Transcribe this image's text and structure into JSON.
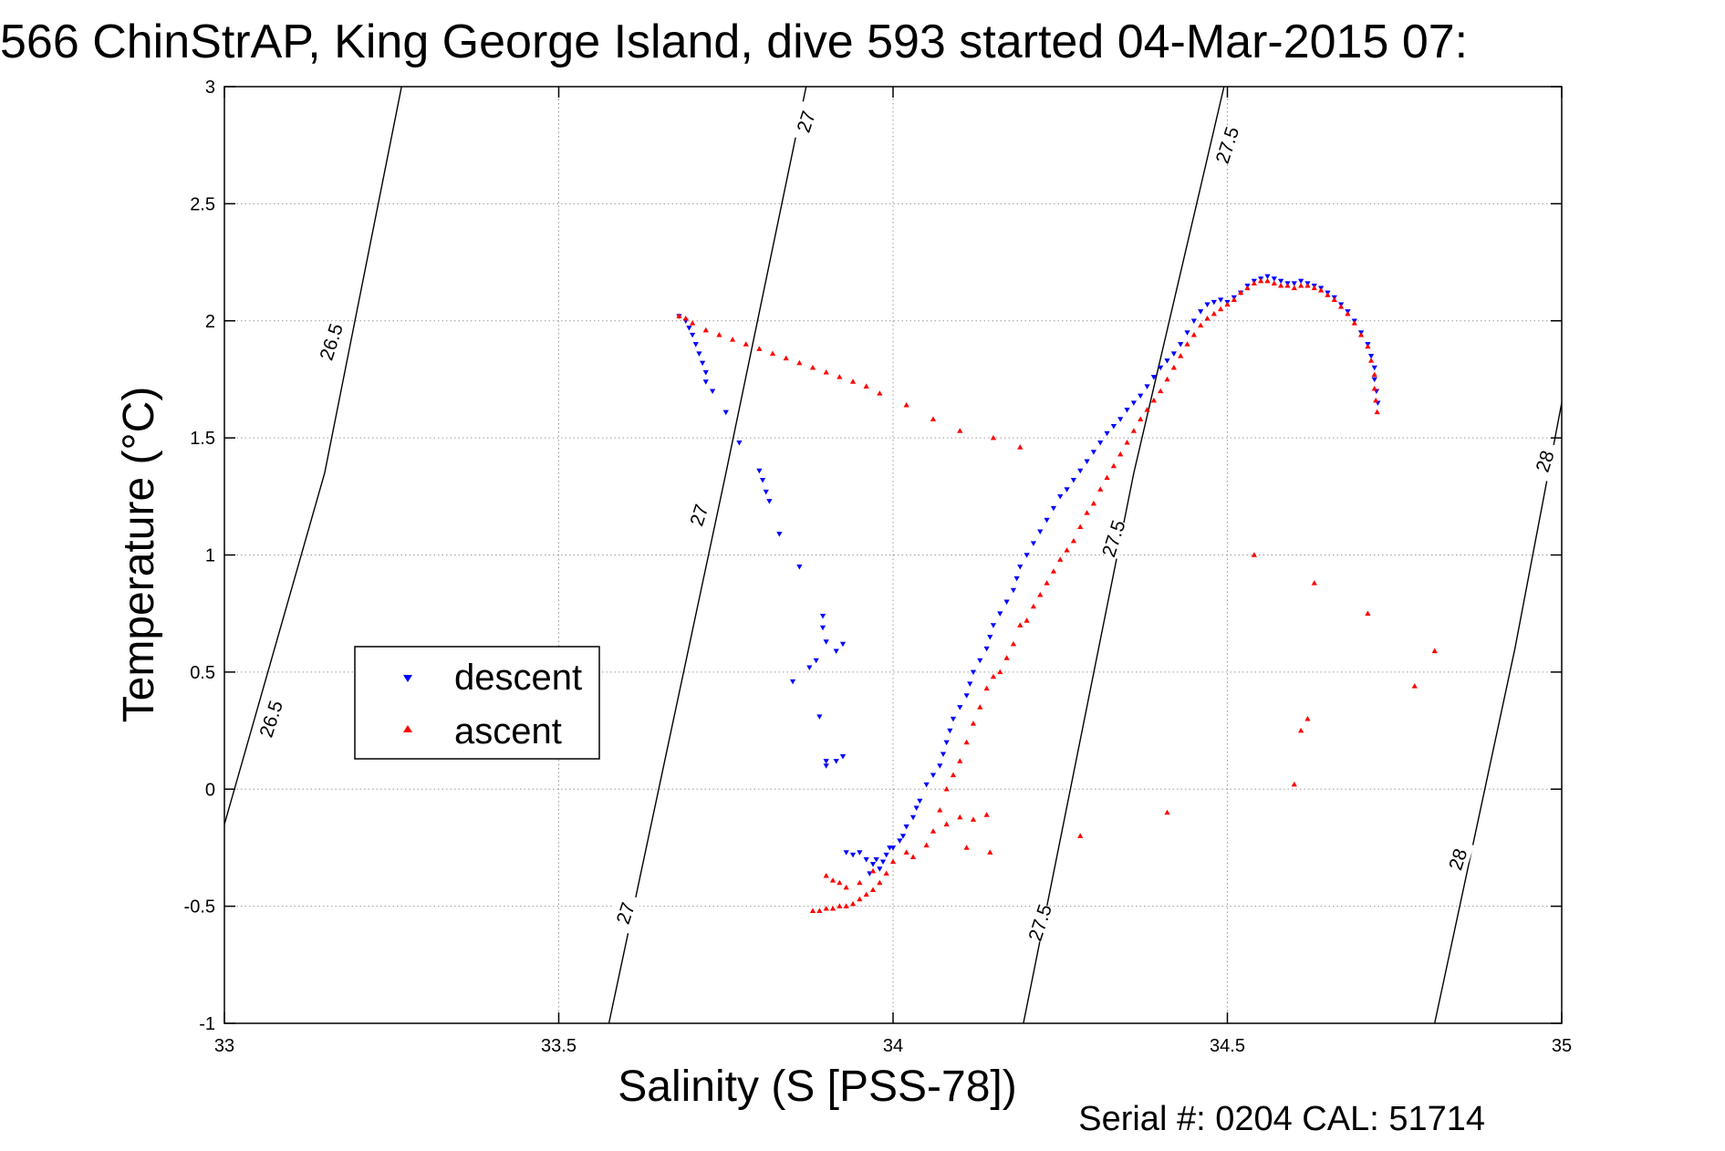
{
  "page": {
    "title": "566 ChinStrAP, King George Island, dive 593 started 04-Mar-2015 07:",
    "footer": "Serial #: 0204  CAL: 51714"
  },
  "chart_data": {
    "type": "scatter",
    "title": "566 ChinStrAP, King George Island, dive 593 started 04-Mar-2015 07:",
    "xlabel": "Salinity (S [PSS-78])",
    "ylabel": "Temperature (°C)",
    "xlim": [
      33,
      35
    ],
    "ylim": [
      -1,
      3
    ],
    "x_ticks": [
      33,
      33.5,
      34,
      34.5,
      35
    ],
    "x_tick_labels": [
      "33",
      "33.5",
      "34",
      "34.5",
      "35"
    ],
    "y_ticks": [
      -1,
      -0.5,
      0,
      0.5,
      1,
      1.5,
      2,
      2.5,
      3
    ],
    "y_tick_labels": [
      "-1",
      "-0.5",
      "0",
      "0.5",
      "1",
      "1.5",
      "2",
      "2.5",
      "3"
    ],
    "grid": true,
    "legend": {
      "placement": "middle-left",
      "entries": [
        {
          "label": "descent",
          "color": "#0000ff",
          "marker": "triangle-down"
        },
        {
          "label": "ascent",
          "color": "#ff0000",
          "marker": "triangle-up"
        }
      ]
    },
    "contours": [
      {
        "level": "26.5",
        "path": [
          [
            33.0,
            -0.15
          ],
          [
            33.15,
            1.35
          ],
          [
            33.265,
            3.0
          ]
        ],
        "labels": [
          {
            "x": 33.07,
            "y": 0.3,
            "angle": -72
          },
          {
            "x": 33.16,
            "y": 1.91,
            "angle": -72
          }
        ]
      },
      {
        "level": "27",
        "path": [
          [
            33.575,
            -1.0
          ],
          [
            33.75,
            1.35
          ],
          [
            33.87,
            3.0
          ]
        ],
        "labels": [
          {
            "x": 33.6,
            "y": -0.53,
            "angle": -72
          },
          {
            "x": 33.71,
            "y": 1.17,
            "angle": -72
          },
          {
            "x": 33.87,
            "y": 2.85,
            "angle": -72
          }
        ]
      },
      {
        "level": "27.5",
        "path": [
          [
            34.195,
            -1.0
          ],
          [
            34.36,
            1.35
          ],
          [
            34.495,
            3.0
          ]
        ],
        "labels": [
          {
            "x": 34.22,
            "y": -0.57,
            "angle": -72
          },
          {
            "x": 34.33,
            "y": 1.07,
            "angle": -72
          },
          {
            "x": 34.5,
            "y": 2.75,
            "angle": -72
          }
        ]
      },
      {
        "level": "28",
        "path": [
          [
            34.81,
            -1.0
          ],
          [
            34.93,
            0.6
          ],
          [
            35.0,
            1.65
          ]
        ],
        "labels": [
          {
            "x": 34.845,
            "y": -0.3,
            "angle": -72
          },
          {
            "x": 34.975,
            "y": 1.4,
            "angle": -72
          }
        ]
      }
    ],
    "series": [
      {
        "name": "descent",
        "color": "#0000ff",
        "marker": "triangle-down",
        "points": [
          [
            33.68,
            2.02
          ],
          [
            33.69,
            2.0
          ],
          [
            33.695,
            1.97
          ],
          [
            33.7,
            1.94
          ],
          [
            33.705,
            1.9
          ],
          [
            33.71,
            1.86
          ],
          [
            33.715,
            1.82
          ],
          [
            33.72,
            1.78
          ],
          [
            33.72,
            1.74
          ],
          [
            33.73,
            1.7
          ],
          [
            33.75,
            1.61
          ],
          [
            33.77,
            1.48
          ],
          [
            33.8,
            1.36
          ],
          [
            33.805,
            1.32
          ],
          [
            33.81,
            1.27
          ],
          [
            33.815,
            1.23
          ],
          [
            33.83,
            1.09
          ],
          [
            33.86,
            0.95
          ],
          [
            33.895,
            0.74
          ],
          [
            33.895,
            0.69
          ],
          [
            33.9,
            0.63
          ],
          [
            33.885,
            0.55
          ],
          [
            33.875,
            0.52
          ],
          [
            33.85,
            0.46
          ],
          [
            33.89,
            0.31
          ],
          [
            33.915,
            0.59
          ],
          [
            33.925,
            0.62
          ],
          [
            33.9,
            0.12
          ],
          [
            33.9,
            0.1
          ],
          [
            33.915,
            0.12
          ],
          [
            33.925,
            0.14
          ],
          [
            33.93,
            -0.27
          ],
          [
            33.94,
            -0.28
          ],
          [
            33.95,
            -0.27
          ],
          [
            33.96,
            -0.3
          ],
          [
            33.965,
            -0.36
          ],
          [
            33.97,
            -0.32
          ],
          [
            33.975,
            -0.3
          ],
          [
            33.98,
            -0.34
          ],
          [
            33.985,
            -0.31
          ],
          [
            33.99,
            -0.28
          ],
          [
            33.995,
            -0.25
          ],
          [
            34.0,
            -0.25
          ],
          [
            34.01,
            -0.22
          ],
          [
            34.015,
            -0.2
          ],
          [
            34.02,
            -0.16
          ],
          [
            34.03,
            -0.12
          ],
          [
            34.035,
            -0.08
          ],
          [
            34.04,
            -0.05
          ],
          [
            34.05,
            0.02
          ],
          [
            34.06,
            0.06
          ],
          [
            34.07,
            0.1
          ],
          [
            34.075,
            0.15
          ],
          [
            34.08,
            0.2
          ],
          [
            34.085,
            0.25
          ],
          [
            34.09,
            0.3
          ],
          [
            34.1,
            0.35
          ],
          [
            34.11,
            0.4
          ],
          [
            34.115,
            0.45
          ],
          [
            34.12,
            0.5
          ],
          [
            34.13,
            0.55
          ],
          [
            34.14,
            0.6
          ],
          [
            34.145,
            0.65
          ],
          [
            34.15,
            0.7
          ],
          [
            34.16,
            0.75
          ],
          [
            34.17,
            0.8
          ],
          [
            34.18,
            0.85
          ],
          [
            34.185,
            0.9
          ],
          [
            34.19,
            0.95
          ],
          [
            34.2,
            1.0
          ],
          [
            34.21,
            1.05
          ],
          [
            34.22,
            1.1
          ],
          [
            34.23,
            1.15
          ],
          [
            34.24,
            1.2
          ],
          [
            34.25,
            1.25
          ],
          [
            34.26,
            1.28
          ],
          [
            34.27,
            1.32
          ],
          [
            34.28,
            1.36
          ],
          [
            34.29,
            1.4
          ],
          [
            34.3,
            1.44
          ],
          [
            34.31,
            1.48
          ],
          [
            34.32,
            1.52
          ],
          [
            34.33,
            1.55
          ],
          [
            34.34,
            1.58
          ],
          [
            34.35,
            1.62
          ],
          [
            34.36,
            1.65
          ],
          [
            34.37,
            1.68
          ],
          [
            34.38,
            1.72
          ],
          [
            34.39,
            1.76
          ],
          [
            34.4,
            1.8
          ],
          [
            34.41,
            1.83
          ],
          [
            34.42,
            1.86
          ],
          [
            34.43,
            1.9
          ],
          [
            34.44,
            1.95
          ],
          [
            34.45,
            2.0
          ],
          [
            34.46,
            2.04
          ],
          [
            34.47,
            2.07
          ],
          [
            34.48,
            2.08
          ],
          [
            34.49,
            2.09
          ],
          [
            34.5,
            2.08
          ],
          [
            34.51,
            2.1
          ],
          [
            34.52,
            2.12
          ],
          [
            34.53,
            2.15
          ],
          [
            34.54,
            2.17
          ],
          [
            34.55,
            2.18
          ],
          [
            34.56,
            2.19
          ],
          [
            34.57,
            2.18
          ],
          [
            34.58,
            2.17
          ],
          [
            34.59,
            2.16
          ],
          [
            34.6,
            2.16
          ],
          [
            34.61,
            2.17
          ],
          [
            34.62,
            2.16
          ],
          [
            34.63,
            2.15
          ],
          [
            34.64,
            2.14
          ],
          [
            34.65,
            2.12
          ],
          [
            34.66,
            2.1
          ],
          [
            34.67,
            2.07
          ],
          [
            34.68,
            2.04
          ],
          [
            34.69,
            2.0
          ],
          [
            34.7,
            1.95
          ],
          [
            34.71,
            1.9
          ],
          [
            34.715,
            1.85
          ],
          [
            34.72,
            1.8
          ],
          [
            34.72,
            1.75
          ],
          [
            34.723,
            1.7
          ],
          [
            34.725,
            1.65
          ]
        ]
      },
      {
        "name": "ascent",
        "color": "#ff0000",
        "marker": "triangle-up",
        "points": [
          [
            33.68,
            2.02
          ],
          [
            33.69,
            2.01
          ],
          [
            33.7,
            1.99
          ],
          [
            33.72,
            1.96
          ],
          [
            33.74,
            1.94
          ],
          [
            33.76,
            1.92
          ],
          [
            33.78,
            1.9
          ],
          [
            33.8,
            1.88
          ],
          [
            33.82,
            1.86
          ],
          [
            33.84,
            1.84
          ],
          [
            33.86,
            1.82
          ],
          [
            33.88,
            1.8
          ],
          [
            33.9,
            1.78
          ],
          [
            33.92,
            1.76
          ],
          [
            33.94,
            1.74
          ],
          [
            33.96,
            1.72
          ],
          [
            33.98,
            1.69
          ],
          [
            34.02,
            1.64
          ],
          [
            34.06,
            1.58
          ],
          [
            34.1,
            1.53
          ],
          [
            34.15,
            1.5
          ],
          [
            34.19,
            1.46
          ],
          [
            33.88,
            -0.52
          ],
          [
            33.89,
            -0.52
          ],
          [
            33.9,
            -0.51
          ],
          [
            33.91,
            -0.51
          ],
          [
            33.92,
            -0.5
          ],
          [
            33.93,
            -0.5
          ],
          [
            33.94,
            -0.49
          ],
          [
            33.95,
            -0.47
          ],
          [
            33.96,
            -0.45
          ],
          [
            33.97,
            -0.43
          ],
          [
            33.98,
            -0.4
          ],
          [
            33.99,
            -0.36
          ],
          [
            33.9,
            -0.37
          ],
          [
            33.91,
            -0.39
          ],
          [
            33.92,
            -0.4
          ],
          [
            33.93,
            -0.42
          ],
          [
            33.95,
            -0.4
          ],
          [
            33.97,
            -0.35
          ],
          [
            34.0,
            -0.31
          ],
          [
            34.02,
            -0.27
          ],
          [
            34.03,
            -0.29
          ],
          [
            34.05,
            -0.24
          ],
          [
            34.06,
            -0.18
          ],
          [
            34.08,
            -0.15
          ],
          [
            34.1,
            -0.12
          ],
          [
            34.12,
            -0.13
          ],
          [
            34.14,
            -0.11
          ],
          [
            34.145,
            -0.27
          ],
          [
            34.11,
            -0.25
          ],
          [
            34.07,
            -0.09
          ],
          [
            34.08,
            0.0
          ],
          [
            34.09,
            0.06
          ],
          [
            34.1,
            0.12
          ],
          [
            34.11,
            0.2
          ],
          [
            34.12,
            0.28
          ],
          [
            34.13,
            0.35
          ],
          [
            34.14,
            0.43
          ],
          [
            34.15,
            0.48
          ],
          [
            34.16,
            0.5
          ],
          [
            34.17,
            0.56
          ],
          [
            34.18,
            0.62
          ],
          [
            34.19,
            0.7
          ],
          [
            34.2,
            0.72
          ],
          [
            34.21,
            0.78
          ],
          [
            34.22,
            0.83
          ],
          [
            34.23,
            0.88
          ],
          [
            34.24,
            0.93
          ],
          [
            34.25,
            0.98
          ],
          [
            34.26,
            1.02
          ],
          [
            34.27,
            1.06
          ],
          [
            34.28,
            1.12
          ],
          [
            34.29,
            1.18
          ],
          [
            34.3,
            1.22
          ],
          [
            34.31,
            1.28
          ],
          [
            34.32,
            1.33
          ],
          [
            34.33,
            1.38
          ],
          [
            34.34,
            1.43
          ],
          [
            34.35,
            1.48
          ],
          [
            34.36,
            1.53
          ],
          [
            34.37,
            1.58
          ],
          [
            34.38,
            1.62
          ],
          [
            34.39,
            1.66
          ],
          [
            34.4,
            1.7
          ],
          [
            34.41,
            1.75
          ],
          [
            34.42,
            1.8
          ],
          [
            34.43,
            1.85
          ],
          [
            34.44,
            1.9
          ],
          [
            34.45,
            1.94
          ],
          [
            34.46,
            1.98
          ],
          [
            34.47,
            2.01
          ],
          [
            34.48,
            2.03
          ],
          [
            34.49,
            2.05
          ],
          [
            34.5,
            2.07
          ],
          [
            34.51,
            2.09
          ],
          [
            34.52,
            2.12
          ],
          [
            34.53,
            2.14
          ],
          [
            34.54,
            2.16
          ],
          [
            34.55,
            2.17
          ],
          [
            34.56,
            2.17
          ],
          [
            34.57,
            2.16
          ],
          [
            34.58,
            2.15
          ],
          [
            34.59,
            2.15
          ],
          [
            34.6,
            2.14
          ],
          [
            34.61,
            2.15
          ],
          [
            34.62,
            2.15
          ],
          [
            34.63,
            2.14
          ],
          [
            34.64,
            2.13
          ],
          [
            34.65,
            2.11
          ],
          [
            34.66,
            2.09
          ],
          [
            34.67,
            2.06
          ],
          [
            34.68,
            2.03
          ],
          [
            34.69,
            1.99
          ],
          [
            34.7,
            1.94
          ],
          [
            34.71,
            1.89
          ],
          [
            34.715,
            1.83
          ],
          [
            34.72,
            1.77
          ],
          [
            34.72,
            1.71
          ],
          [
            34.722,
            1.66
          ],
          [
            34.724,
            1.61
          ],
          [
            34.54,
            1.0
          ],
          [
            34.63,
            0.88
          ],
          [
            34.71,
            0.75
          ],
          [
            34.81,
            0.59
          ],
          [
            34.78,
            0.44
          ],
          [
            34.62,
            0.3
          ],
          [
            34.61,
            0.25
          ],
          [
            34.6,
            0.02
          ],
          [
            34.41,
            -0.1
          ],
          [
            34.28,
            -0.2
          ]
        ]
      }
    ]
  }
}
